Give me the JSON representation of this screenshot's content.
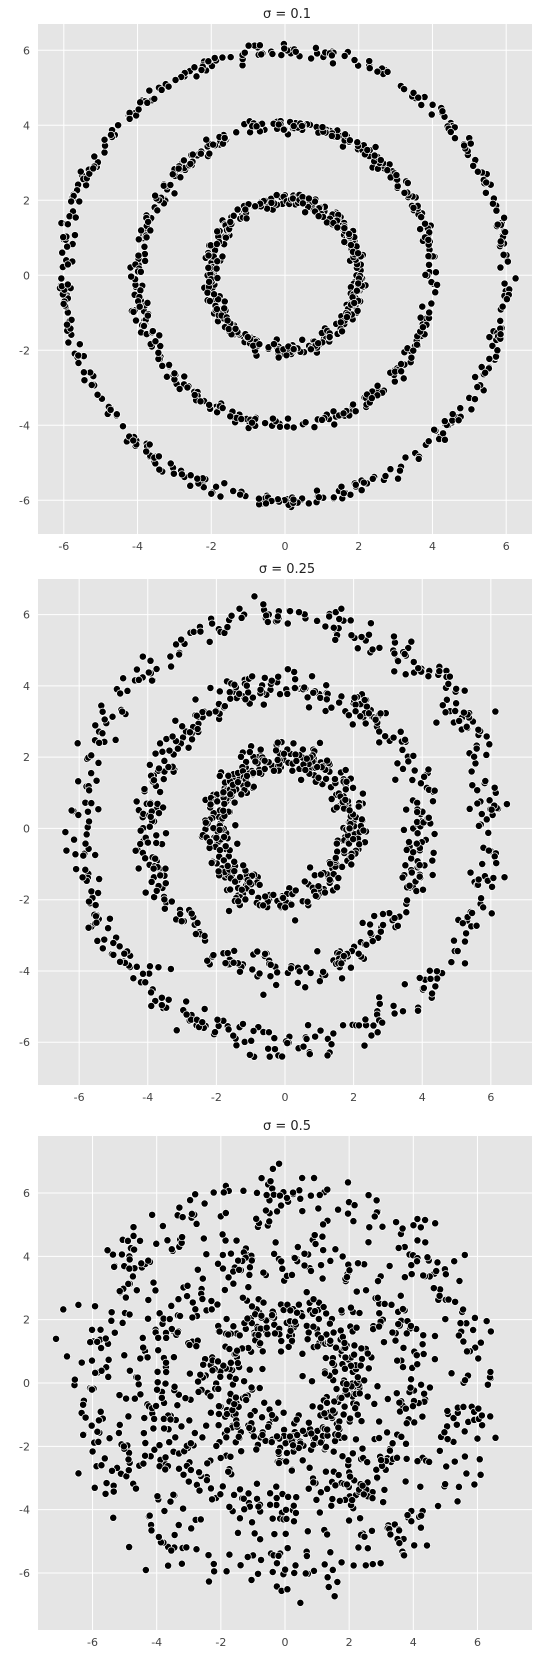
{
  "chart_data": [
    {
      "type": "scatter",
      "title": "σ = 0.1",
      "sigma": 0.1,
      "rings": [
        2,
        4,
        6
      ],
      "n_points_per_ring": 400,
      "xlim": [
        -6.7,
        6.7
      ],
      "ylim": [
        -6.9,
        6.7
      ],
      "xticks": [
        -6,
        -4,
        -2,
        0,
        2,
        4,
        6
      ],
      "yticks": [
        -6,
        -4,
        -2,
        0,
        2,
        4,
        6
      ],
      "point_color": "#000000",
      "grid": true
    },
    {
      "type": "scatter",
      "title": "σ = 0.25",
      "sigma": 0.25,
      "rings": [
        2,
        4,
        6
      ],
      "n_points_per_ring": 400,
      "xlim": [
        -7.2,
        7.2
      ],
      "ylim": [
        -7.2,
        7.0
      ],
      "xticks": [
        -6,
        -4,
        -2,
        0,
        2,
        4,
        6
      ],
      "yticks": [
        -6,
        -4,
        -2,
        0,
        2,
        4,
        6
      ],
      "point_color": "#000000",
      "grid": true
    },
    {
      "type": "scatter",
      "title": "σ = 0.5",
      "sigma": 0.5,
      "rings": [
        2,
        4,
        6
      ],
      "n_points_per_ring": 400,
      "xlim": [
        -7.7,
        7.7
      ],
      "ylim": [
        -7.8,
        7.8
      ],
      "xticks": [
        -6,
        -4,
        -2,
        0,
        2,
        4,
        6
      ],
      "yticks": [
        -6,
        -4,
        -2,
        0,
        2,
        4,
        6
      ],
      "point_color": "#000000",
      "grid": true
    }
  ]
}
